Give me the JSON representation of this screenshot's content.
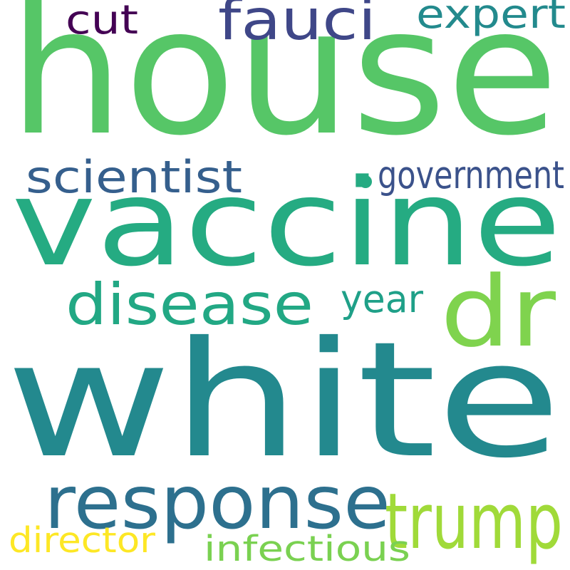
{
  "words": [
    {
      "text": "house",
      "color": "#56c667"
    },
    {
      "text": "vaccine",
      "color": "#25ab82"
    },
    {
      "text": "white",
      "color": "#23898e"
    },
    {
      "text": "dr",
      "color": "#7fd34e"
    },
    {
      "text": "response",
      "color": "#2d708e"
    },
    {
      "text": "trump",
      "color": "#a0da39"
    },
    {
      "text": "fauci",
      "color": "#3f4788"
    },
    {
      "text": "disease",
      "color": "#22a884"
    },
    {
      "text": "scientist",
      "color": "#355f8d"
    },
    {
      "text": "expert",
      "color": "#238a8d"
    },
    {
      "text": "cut",
      "color": "#440154"
    },
    {
      "text": "government",
      "color": "#3b528b"
    },
    {
      "text": "year",
      "color": "#1fa088"
    },
    {
      "text": "infectious",
      "color": "#7ad151"
    },
    {
      "text": "director",
      "color": "#fde725"
    }
  ],
  "dot": {
    "color": "#25ab82"
  }
}
